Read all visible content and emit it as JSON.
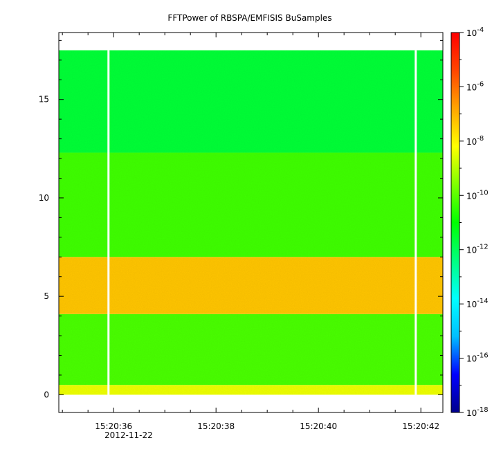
{
  "chart_data": {
    "type": "heatmap",
    "title": "FFTPower of RBSPA/EMFISIS  BuSamples",
    "xlabel": "",
    "ylabel": "",
    "date_label": "2012-11-22",
    "x_ticks": [
      "15:20:36",
      "15:20:38",
      "15:20:40",
      "15:20:42"
    ],
    "x_tick_values_sec": [
      36,
      38,
      40,
      42
    ],
    "xlim_sec": [
      34.93,
      42.43
    ],
    "y_ticks": [
      0,
      5,
      10,
      15
    ],
    "ylim": [
      -0.9,
      18.4
    ],
    "colorbar": {
      "scale": "log",
      "range": [
        1e-18,
        0.0001
      ],
      "tick_bases": [
        "10",
        "10",
        "10",
        "10",
        "10",
        "10",
        "10",
        "10"
      ],
      "tick_exponents": [
        "-18",
        "-16",
        "-14",
        "-12",
        "-10",
        "-8",
        "-6",
        "-4"
      ],
      "tick_log_values": [
        -18,
        -16,
        -14,
        -12,
        -10,
        -8,
        -6,
        -4
      ],
      "colors": [
        "#00008b",
        "#0000ff",
        "#00bfff",
        "#00ffff",
        "#00ff7f",
        "#00ff00",
        "#7fff00",
        "#ffff00",
        "#ffa500",
        "#ff4500",
        "#ff0000"
      ]
    },
    "data_extent": {
      "x_sec": [
        34.93,
        42.43
      ],
      "y": [
        0.0,
        17.5
      ]
    },
    "gaps_sec": [
      35.9,
      41.9
    ],
    "bands": [
      {
        "y": [
          0.0,
          0.5
        ],
        "log_power": -8.4
      },
      {
        "y": [
          0.5,
          4.1
        ],
        "log_power": -10.2
      },
      {
        "y": [
          4.1,
          7.0
        ],
        "log_power": -7.3
      },
      {
        "y": [
          7.0,
          12.3
        ],
        "log_power": -10.3
      },
      {
        "y": [
          12.3,
          17.5
        ],
        "log_power": -11.6
      }
    ]
  }
}
